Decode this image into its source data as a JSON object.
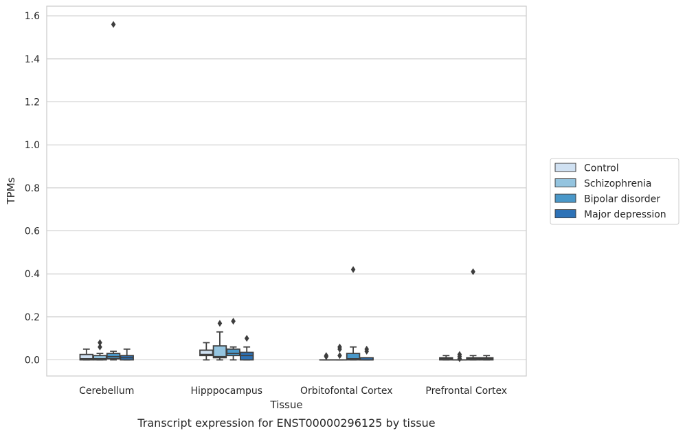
{
  "chart_data": {
    "type": "box",
    "title": "",
    "caption": "Transcript expression for ENST00000296125 by tissue",
    "xlabel": "Tissue",
    "ylabel": "TPMs",
    "ylim": [
      -0.075,
      1.645
    ],
    "yticks": [
      0.0,
      0.2,
      0.4,
      0.6,
      0.8,
      1.0,
      1.2,
      1.4,
      1.6
    ],
    "ytick_labels": [
      "0.0",
      "0.2",
      "0.4",
      "0.6",
      "0.8",
      "1.0",
      "1.2",
      "1.4",
      "1.6"
    ],
    "grid": "horizontal",
    "legend_position": "right",
    "categories": [
      "Cerebellum",
      "Hipppocampus",
      "Orbitofontal Cortex",
      "Prefrontal Cortex"
    ],
    "series": [
      {
        "name": "Control",
        "color": "#d0e1f2",
        "boxes": [
          {
            "whislo": 0.0,
            "q1": 0.0,
            "med": 0.005,
            "q3": 0.025,
            "whishi": 0.05,
            "fliers": []
          },
          {
            "whislo": 0.0,
            "q1": 0.02,
            "med": 0.025,
            "q3": 0.045,
            "whishi": 0.08,
            "fliers": []
          },
          {
            "whislo": 0.0,
            "q1": 0.0,
            "med": 0.0,
            "q3": 0.0,
            "whishi": 0.0,
            "fliers": [
              0.015,
              0.02
            ]
          },
          {
            "whislo": 0.0,
            "q1": 0.0,
            "med": 0.005,
            "q3": 0.01,
            "whishi": 0.02,
            "fliers": []
          }
        ]
      },
      {
        "name": "Schizophrenia",
        "color": "#94c4df",
        "boxes": [
          {
            "whislo": 0.0,
            "q1": 0.0,
            "med": 0.005,
            "q3": 0.02,
            "whishi": 0.03,
            "fliers": [
              0.06,
              0.08
            ]
          },
          {
            "whislo": 0.0,
            "q1": 0.01,
            "med": 0.015,
            "q3": 0.065,
            "whishi": 0.13,
            "fliers": [
              0.17
            ]
          },
          {
            "whislo": 0.0,
            "q1": 0.0,
            "med": 0.0,
            "q3": 0.0,
            "whishi": 0.0,
            "fliers": [
              0.02,
              0.05,
              0.06
            ]
          },
          {
            "whislo": 0.0,
            "q1": 0.0,
            "med": 0.0,
            "q3": 0.0,
            "whishi": 0.0,
            "fliers": [
              0.005,
              0.015,
              0.025
            ]
          }
        ]
      },
      {
        "name": "Bipolar disorder",
        "color": "#4a98c9",
        "boxes": [
          {
            "whislo": 0.0,
            "q1": 0.005,
            "med": 0.015,
            "q3": 0.03,
            "whishi": 0.04,
            "fliers": [
              1.56
            ]
          },
          {
            "whislo": 0.0,
            "q1": 0.02,
            "med": 0.03,
            "q3": 0.05,
            "whishi": 0.06,
            "fliers": [
              0.18
            ]
          },
          {
            "whislo": 0.0,
            "q1": 0.0,
            "med": 0.005,
            "q3": 0.03,
            "whishi": 0.06,
            "fliers": [
              0.42
            ]
          },
          {
            "whislo": 0.0,
            "q1": 0.0,
            "med": 0.005,
            "q3": 0.01,
            "whishi": 0.02,
            "fliers": [
              0.41
            ]
          }
        ]
      },
      {
        "name": "Major depression",
        "color": "#2d72b7",
        "boxes": [
          {
            "whislo": 0.0,
            "q1": 0.0,
            "med": 0.01,
            "q3": 0.02,
            "whishi": 0.05,
            "fliers": []
          },
          {
            "whislo": 0.0,
            "q1": 0.0,
            "med": 0.02,
            "q3": 0.035,
            "whishi": 0.06,
            "fliers": [
              0.1
            ]
          },
          {
            "whislo": 0.0,
            "q1": 0.0,
            "med": 0.0,
            "q3": 0.01,
            "whishi": 0.01,
            "fliers": [
              0.04,
              0.05
            ]
          },
          {
            "whislo": 0.0,
            "q1": 0.0,
            "med": 0.005,
            "q3": 0.01,
            "whishi": 0.02,
            "fliers": []
          }
        ]
      }
    ]
  }
}
